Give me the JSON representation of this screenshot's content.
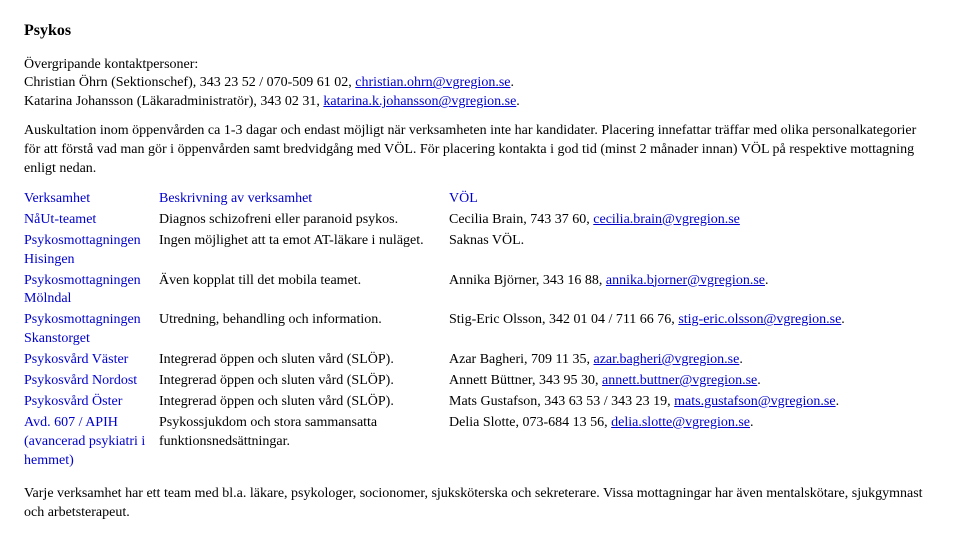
{
  "title": "Psykos",
  "intro": {
    "heading": "Övergripande kontaktpersoner:",
    "line1_a": "Christian Öhrn (Sektionschef), 343 23 52 / 070-509 61 02, ",
    "line1_link": "christian.ohrn@vgregion.se",
    "line1_b": ".",
    "line2_a": "Katarina Johansson (Läkaradministratör), 343 02 31, ",
    "line2_link": "katarina.k.johansson@vgregion.se",
    "line2_b": "."
  },
  "para": "Auskultation inom öppenvården ca 1-3 dagar och endast möjligt när verksamheten inte har kandidater. Placering innefattar träffar med olika personalkategorier för att förstå vad man gör i öppenvården samt bredvidgång med VÖL. För placering kontakta i god tid (minst 2 månader innan) VÖL på respektive mottagning enligt nedan.",
  "table": {
    "headers": [
      "Verksamhet",
      "Beskrivning av verksamhet",
      "VÖL"
    ],
    "rows": [
      {
        "name": "NåUt-teamet",
        "desc": "Diagnos schizofreni eller paranoid psykos.",
        "vol_a": "Cecilia Brain, 743 37 60, ",
        "vol_link": "cecilia.brain@vgregion.se",
        "vol_b": ""
      },
      {
        "name": "Psykosmottagningen Hisingen",
        "desc": "Ingen möjlighet att ta emot AT-läkare i nuläget.",
        "vol_a": "Saknas VÖL.",
        "vol_link": "",
        "vol_b": ""
      },
      {
        "name": "Psykosmottagningen Mölndal",
        "desc": "Även kopplat till det mobila teamet.",
        "vol_a": "Annika Björner, 343 16 88, ",
        "vol_link": "annika.bjorner@vgregion.se",
        "vol_b": "."
      },
      {
        "name": "Psykosmottagningen Skanstorget",
        "desc": "Utredning, behandling och information.",
        "vol_a": "Stig-Eric Olsson, 342 01 04 / 711 66 76, ",
        "vol_link": "stig-eric.olsson@vgregion.se",
        "vol_b": "."
      },
      {
        "name": "Psykosvård Väster",
        "desc": "Integrerad öppen och sluten vård (SLÖP).",
        "vol_a": "Azar Bagheri, 709 11 35, ",
        "vol_link": "azar.bagheri@vgregion.se",
        "vol_b": "."
      },
      {
        "name": "Psykosvård Nordost",
        "desc": "Integrerad öppen och sluten vård (SLÖP).",
        "vol_a": "Annett Büttner, 343 95 30, ",
        "vol_link": "annett.buttner@vgregion.se",
        "vol_b": "."
      },
      {
        "name": "Psykosvård Öster",
        "desc": "Integrerad öppen och sluten vård (SLÖP).",
        "vol_a": "Mats Gustafson, 343 63 53 / 343 23 19, ",
        "vol_link": "mats.gustafson@vgregion.se",
        "vol_b": "."
      },
      {
        "name": "Avd. 607 / APIH (avancerad psykiatri i hemmet)",
        "desc": "Psykossjukdom och stora sammansatta funktionsnedsättningar.",
        "vol_a": "Delia Slotte, 073-684 13 56, ",
        "vol_link": "delia.slotte@vgregion.se",
        "vol_b": "."
      }
    ]
  },
  "footer": "Varje verksamhet har ett team med bl.a. läkare, psykologer, socionomer, sjuksköterska och sekreterare. Vissa mottagningar har även mentalskötare, sjukgymnast och arbetsterapeut."
}
